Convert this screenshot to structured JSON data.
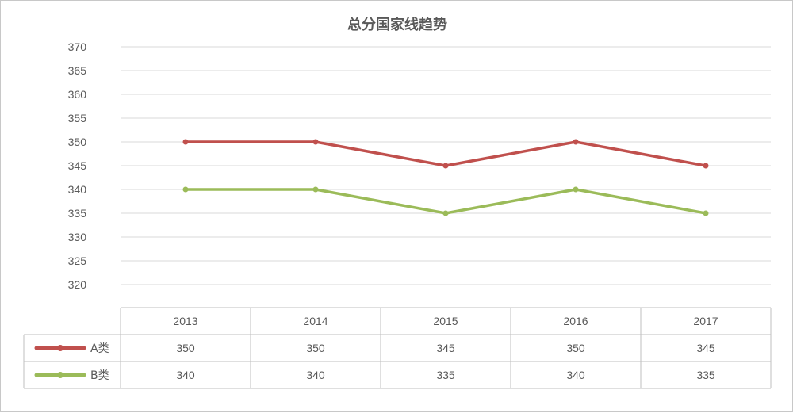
{
  "chart_data": {
    "type": "line",
    "title": "总分国家线趋势",
    "categories": [
      "2013",
      "2014",
      "2015",
      "2016",
      "2017"
    ],
    "series": [
      {
        "name": "A类",
        "values": [
          350,
          350,
          345,
          350,
          345
        ],
        "color": "#c0504d"
      },
      {
        "name": "B类",
        "values": [
          340,
          340,
          335,
          340,
          335
        ],
        "color": "#9bbb59"
      }
    ],
    "yticks": [
      370,
      365,
      360,
      355,
      350,
      345,
      340,
      335,
      330,
      325,
      320
    ],
    "ylim": [
      320,
      370
    ],
    "grid": true,
    "legend": "data-table",
    "data_table": true,
    "colors": {
      "gridline": "#d9d9d9",
      "table_border": "#bfbfbf",
      "text": "#595959"
    }
  }
}
